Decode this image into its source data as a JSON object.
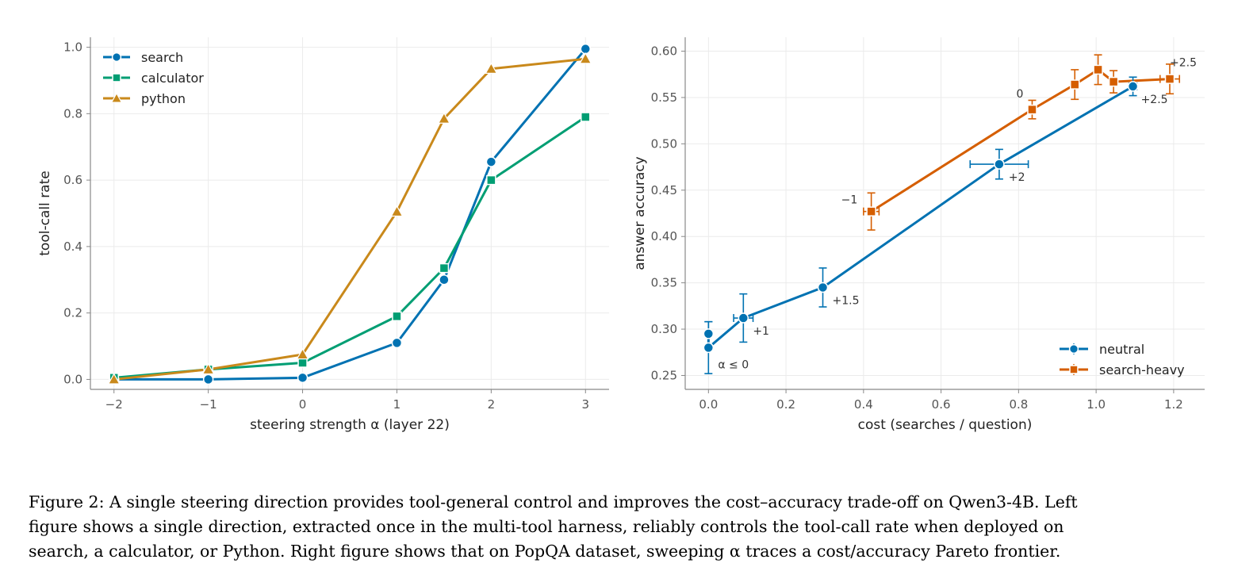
{
  "chart_data": [
    {
      "type": "line",
      "xlabel": "steering strength α  (layer 22)",
      "ylabel": "tool-call rate",
      "xlim": [
        -2.25,
        3.25
      ],
      "ylim": [
        -0.03,
        1.03
      ],
      "xticks": [
        -2,
        -1,
        0,
        1,
        2,
        3
      ],
      "xtick_labels": [
        "−2",
        "−1",
        "0",
        "1",
        "2",
        "3"
      ],
      "yticks": [
        0.0,
        0.2,
        0.4,
        0.6,
        0.8,
        1.0
      ],
      "ytick_labels": [
        "0.0",
        "0.2",
        "0.4",
        "0.6",
        "0.8",
        "1.0"
      ],
      "grid": true,
      "legend_position": "top-left",
      "series": [
        {
          "name": "search",
          "color": "#0072b2",
          "marker": "circle",
          "x": [
            -2,
            -1,
            0,
            1,
            1.5,
            2,
            3
          ],
          "y": [
            0.0,
            0.0,
            0.005,
            0.11,
            0.3,
            0.655,
            0.995
          ]
        },
        {
          "name": "calculator",
          "color": "#009e73",
          "marker": "square",
          "x": [
            -2,
            -1,
            0,
            1,
            1.5,
            2,
            3
          ],
          "y": [
            0.005,
            0.03,
            0.05,
            0.19,
            0.335,
            0.6,
            0.79
          ]
        },
        {
          "name": "python",
          "color": "#c9891b",
          "marker": "triangle",
          "x": [
            -2,
            -1,
            0,
            1,
            1.5,
            2,
            3
          ],
          "y": [
            0.0,
            0.03,
            0.075,
            0.505,
            0.785,
            0.935,
            0.965
          ]
        }
      ]
    },
    {
      "type": "line",
      "xlabel": "cost  (searches / question)",
      "ylabel": "answer accuracy",
      "xlim": [
        -0.06,
        1.28
      ],
      "ylim": [
        0.235,
        0.615
      ],
      "xticks": [
        0.0,
        0.2,
        0.4,
        0.6,
        0.8,
        1.0,
        1.2
      ],
      "xtick_labels": [
        "0.0",
        "0.2",
        "0.4",
        "0.6",
        "0.8",
        "1.0",
        "1.2"
      ],
      "yticks": [
        0.25,
        0.3,
        0.35,
        0.4,
        0.45,
        0.5,
        0.55,
        0.6
      ],
      "ytick_labels": [
        "0.25",
        "0.30",
        "0.35",
        "0.40",
        "0.45",
        "0.50",
        "0.55",
        "0.60"
      ],
      "grid": true,
      "legend_position": "bottom-right",
      "series": [
        {
          "name": "neutral",
          "color": "#0072b2",
          "marker": "circle",
          "points": [
            {
              "x": 0.0,
              "y": 0.295,
              "xerr": 0.0,
              "yerr": 0.013
            },
            {
              "x": 0.0,
              "y": 0.28,
              "xerr": 0.0,
              "yerr": 0.028
            },
            {
              "x": 0.09,
              "y": 0.312,
              "xerr": 0.025,
              "yerr": 0.026
            },
            {
              "x": 0.295,
              "y": 0.345,
              "xerr": 0.0,
              "yerr": 0.021
            },
            {
              "x": 0.75,
              "y": 0.478,
              "xerr": 0.075,
              "yerr": 0.016
            },
            {
              "x": 1.095,
              "y": 0.562,
              "xerr": 0.01,
              "yerr": 0.01
            }
          ]
        },
        {
          "name": "search-heavy",
          "color": "#d55e00",
          "marker": "square",
          "points": [
            {
              "x": 0.42,
              "y": 0.427,
              "xerr": 0.02,
              "yerr": 0.02
            },
            {
              "x": 0.835,
              "y": 0.537,
              "xerr": 0.01,
              "yerr": 0.01
            },
            {
              "x": 0.945,
              "y": 0.564,
              "xerr": 0.01,
              "yerr": 0.016
            },
            {
              "x": 1.005,
              "y": 0.58,
              "xerr": 0.01,
              "yerr": 0.016
            },
            {
              "x": 1.045,
              "y": 0.567,
              "xerr": 0.01,
              "yerr": 0.012
            },
            {
              "x": 1.19,
              "y": 0.57,
              "xerr": 0.025,
              "yerr": 0.016
            }
          ]
        }
      ],
      "annotations": [
        {
          "text": "α ≤ 0",
          "x": 0.0,
          "y": 0.28,
          "series": "neutral"
        },
        {
          "text": "+1",
          "x": 0.09,
          "y": 0.312,
          "series": "neutral"
        },
        {
          "text": "+1.5",
          "x": 0.295,
          "y": 0.345,
          "series": "neutral"
        },
        {
          "text": "+2",
          "x": 0.75,
          "y": 0.478,
          "series": "neutral"
        },
        {
          "text": "+2.5",
          "x": 1.095,
          "y": 0.562,
          "series": "neutral"
        },
        {
          "text": "−1",
          "x": 0.42,
          "y": 0.427,
          "series": "search-heavy"
        },
        {
          "text": "0",
          "x": 0.835,
          "y": 0.537,
          "series": "search-heavy"
        },
        {
          "text": "+2.5",
          "x": 1.19,
          "y": 0.57,
          "series": "search-heavy"
        }
      ]
    }
  ],
  "caption": {
    "line1": "Figure 2: A single steering direction provides tool-general control and improves the cost–accuracy trade-off on Qwen3-4B. Left",
    "line2": "figure shows a single direction, extracted once in the multi-tool harness, reliably controls the tool-call rate when deployed on",
    "line3": "search, a calculator, or Python. Right figure shows that on PopQA dataset, sweeping α traces a cost/accuracy Pareto frontier."
  }
}
